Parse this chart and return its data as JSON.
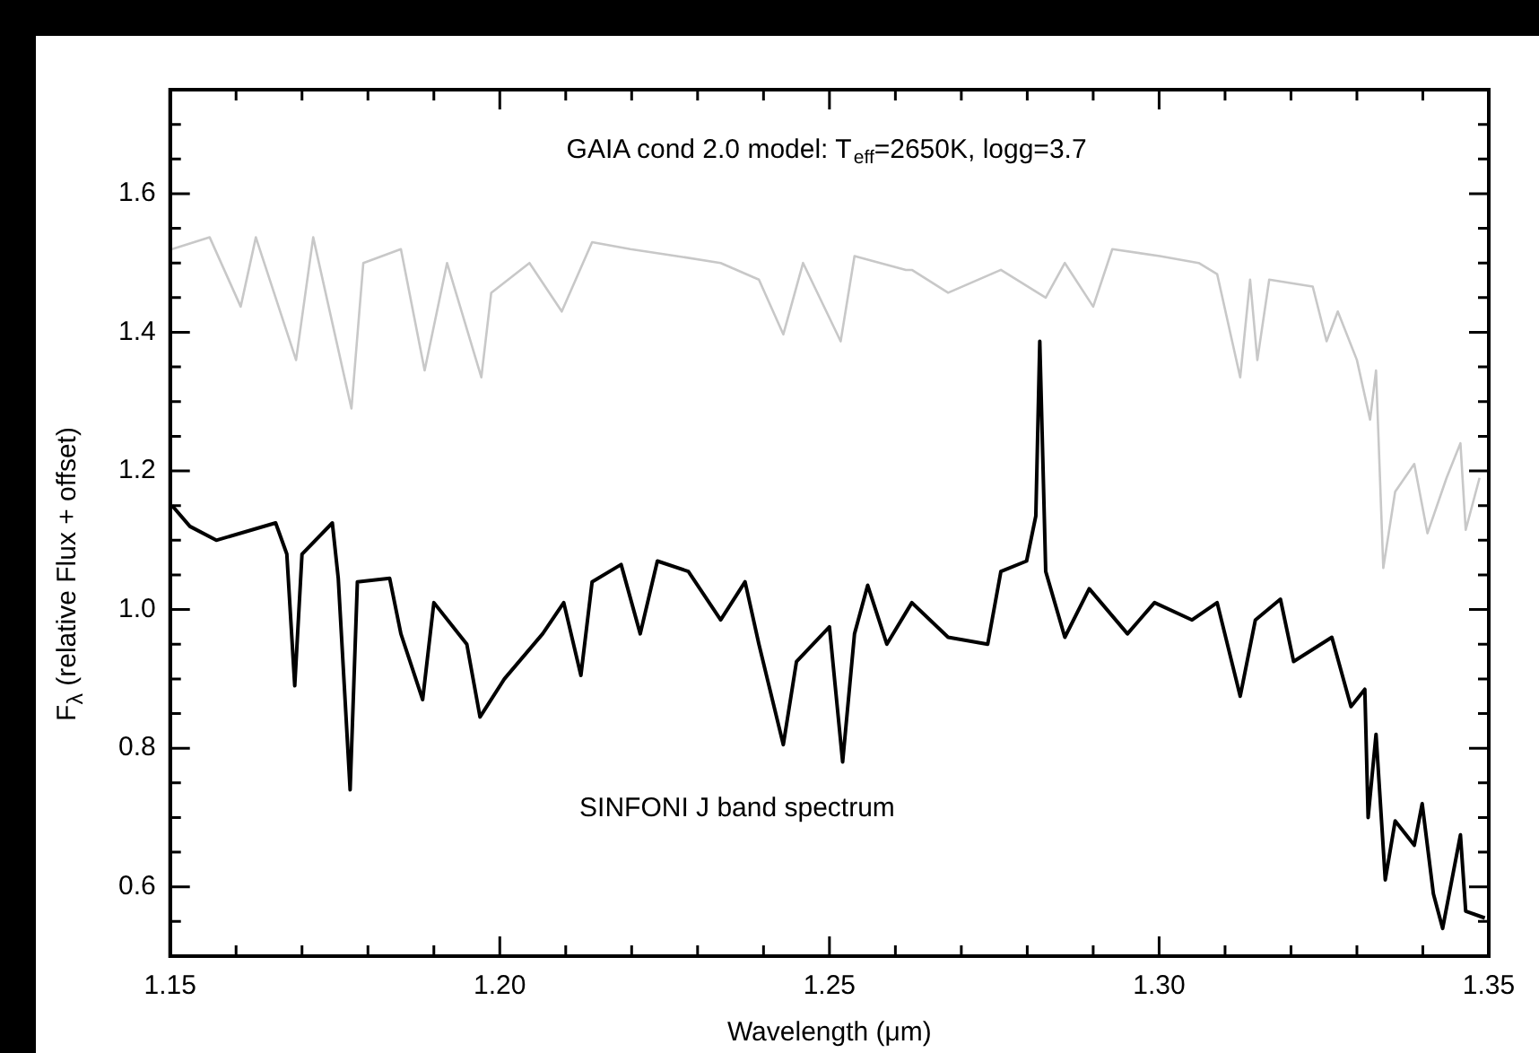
{
  "chart_data": {
    "type": "line",
    "xlabel": "Wavelength (μm)",
    "ylabel": "F$_{λ}$ (relative Flux + offset)",
    "xlim": [
      1.15,
      1.35
    ],
    "ylim": [
      0.5,
      1.75
    ],
    "xticks": [
      1.15,
      {
        "value": 1.16,
        "label": null
      },
      {
        "value": 1.17,
        "label": null
      },
      {
        "value": 1.18,
        "label": null
      },
      {
        "value": 1.19,
        "label": null
      },
      {
        "value": 1.2,
        "label": "1.20"
      },
      {
        "value": 1.21,
        "label": null
      },
      {
        "value": 1.22,
        "label": null
      },
      {
        "value": 1.23,
        "label": null
      },
      {
        "value": 1.24,
        "label": null
      },
      1.25,
      {
        "value": 1.26,
        "label": null
      },
      {
        "value": 1.27,
        "label": null
      },
      {
        "value": 1.28,
        "label": null
      },
      {
        "value": 1.29,
        "label": null
      },
      {
        "value": 1.3,
        "label": "1.30"
      },
      {
        "value": 1.31,
        "label": null
      },
      {
        "value": 1.32,
        "label": null
      },
      {
        "value": 1.33,
        "label": null
      },
      {
        "value": 1.34,
        "label": null
      },
      1.35
    ],
    "yticks": [
      {
        "value": 0.55,
        "label": null
      },
      0.6,
      {
        "value": 0.65,
        "label": null
      },
      {
        "value": 0.7,
        "label": null
      },
      {
        "value": 0.75,
        "label": null
      },
      0.8,
      {
        "value": 0.85,
        "label": null
      },
      {
        "value": 0.9,
        "label": null
      },
      {
        "value": 0.95,
        "label": null
      },
      {
        "value": 1,
        "label": "1.0"
      },
      {
        "value": 1.05,
        "label": null
      },
      {
        "value": 1.1,
        "label": null
      },
      {
        "value": 1.15,
        "label": null
      },
      1.2,
      {
        "value": 1.25,
        "label": null
      },
      {
        "value": 1.3,
        "label": null
      },
      {
        "value": 1.35,
        "label": null
      },
      1.4,
      {
        "value": 1.45,
        "label": null
      },
      {
        "value": 1.5,
        "label": null
      },
      {
        "value": 1.55,
        "label": null
      },
      1.6,
      {
        "value": 1.65,
        "label": null
      },
      {
        "value": 1.7,
        "label": null
      }
    ],
    "annotations": [
      "GAIA cond 2.0 model: T$_{eff}$=2650K, logg=3.7",
      "SINFONI J band spectrum"
    ],
    "grid": false,
    "legend": false,
    "marker": "none",
    "line_style": "solid",
    "series": [
      {
        "color": "#c8c8c8",
        "x": [
          1.1503,
          1.156,
          1.1607,
          1.163,
          1.1691,
          1.1717,
          1.1775,
          1.1793,
          1.185,
          1.1886,
          1.192,
          1.1972,
          1.1987,
          1.2045,
          1.2094,
          1.214,
          1.2198,
          1.2268,
          1.2335,
          1.2393,
          1.243,
          1.246,
          1.2517,
          1.2538,
          1.2616,
          1.2625,
          1.268,
          1.276,
          1.2828,
          1.2857,
          1.29,
          1.2929,
          1.3001,
          1.306,
          1.3088,
          1.3123,
          1.3138,
          1.3149,
          1.3167,
          1.3233,
          1.3254,
          1.3271,
          1.33,
          1.332,
          1.3329,
          1.334,
          1.3358,
          1.3387,
          1.3407,
          1.3436,
          1.3457,
          1.3465,
          1.3486
        ],
        "values": [
          1.52,
          1.537,
          1.437,
          1.537,
          1.36,
          1.537,
          1.29,
          1.5,
          1.52,
          1.345,
          1.5,
          1.335,
          1.457,
          1.5,
          1.43,
          1.53,
          1.52,
          1.51,
          1.5,
          1.476,
          1.397,
          1.5,
          1.387,
          1.51,
          1.49,
          1.49,
          1.457,
          1.49,
          1.45,
          1.5,
          1.437,
          1.52,
          1.51,
          1.5,
          1.484,
          1.335,
          1.476,
          1.36,
          1.476,
          1.466,
          1.387,
          1.43,
          1.36,
          1.274,
          1.345,
          1.06,
          1.17,
          1.21,
          1.11,
          1.19,
          1.24,
          1.115,
          1.19
        ]
      },
      {
        "color": "#000000",
        "x": [
          1.1503,
          1.153,
          1.157,
          1.166,
          1.1677,
          1.1689,
          1.17,
          1.1746,
          1.1755,
          1.1773,
          1.1784,
          1.1833,
          1.185,
          1.1883,
          1.19,
          1.195,
          1.197,
          1.2007,
          1.2065,
          1.2097,
          1.2123,
          1.214,
          1.2184,
          1.2213,
          1.2239,
          1.2286,
          1.2335,
          1.2372,
          1.2393,
          1.243,
          1.245,
          1.25,
          1.252,
          1.2538,
          1.2558,
          1.2587,
          1.2625,
          1.268,
          1.274,
          1.276,
          1.2799,
          1.2813,
          1.2819,
          1.2828,
          1.2857,
          1.2894,
          1.2952,
          1.2993,
          1.305,
          1.3088,
          1.3123,
          1.3146,
          1.3184,
          1.3204,
          1.3262,
          1.3291,
          1.3312,
          1.3317,
          1.3329,
          1.3343,
          1.3358,
          1.3387,
          1.3399,
          1.3416,
          1.343,
          1.3457,
          1.3465,
          1.3494
        ],
        "values": [
          1.15,
          1.12,
          1.1,
          1.125,
          1.08,
          0.89,
          1.08,
          1.125,
          1.045,
          0.74,
          1.04,
          1.045,
          0.965,
          0.87,
          1.01,
          0.95,
          0.845,
          0.9,
          0.965,
          1.01,
          0.905,
          1.04,
          1.065,
          0.965,
          1.07,
          1.055,
          0.985,
          1.04,
          0.95,
          0.805,
          0.925,
          0.975,
          0.78,
          0.965,
          1.035,
          0.95,
          1.01,
          0.96,
          0.95,
          1.055,
          1.07,
          1.135,
          1.387,
          1.055,
          0.96,
          1.03,
          0.965,
          1.01,
          0.985,
          1.01,
          0.875,
          0.985,
          1.015,
          0.925,
          0.96,
          0.86,
          0.885,
          0.7,
          0.82,
          0.61,
          0.695,
          0.66,
          0.72,
          0.59,
          0.54,
          0.675,
          0.565,
          0.555
        ]
      }
    ]
  }
}
